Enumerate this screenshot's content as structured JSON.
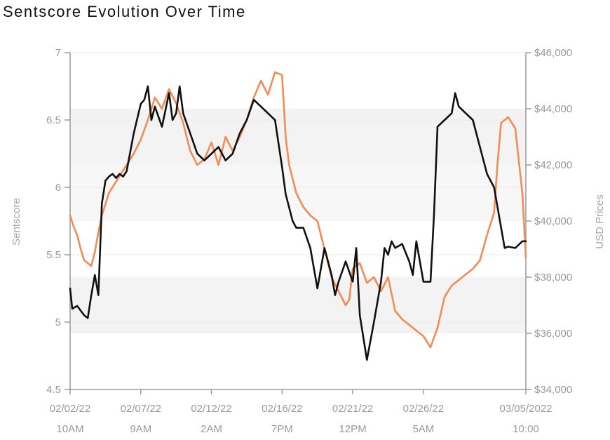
{
  "title": "Sentscore Evolution Over Time",
  "chart_data": {
    "type": "line",
    "title": "Sentscore Evolution Over Time",
    "ylabel_left": "Sentscore",
    "ylabel_right": "USD Prices",
    "ylim_left": [
      4.5,
      7
    ],
    "ylim_right": [
      34000,
      46000
    ],
    "yticks_left": [
      "4.5",
      "5",
      "5.5",
      "6",
      "6.5",
      "7"
    ],
    "yticks_right": [
      "$34,000",
      "$36,000",
      "$38,000",
      "$40,000",
      "$42,000",
      "$44,000",
      "$46,000"
    ],
    "xlim": [
      0,
      6.45
    ],
    "xticks": [
      {
        "pos": 0,
        "line1": "02/02/22",
        "line2": "10AM"
      },
      {
        "pos": 1,
        "line1": "02/07/22",
        "line2": "9AM"
      },
      {
        "pos": 2,
        "line1": "02/12/22",
        "line2": "2AM"
      },
      {
        "pos": 3,
        "line1": "02/16/22",
        "line2": "7PM"
      },
      {
        "pos": 4,
        "line1": "02/21/22",
        "line2": "12PM"
      },
      {
        "pos": 5,
        "line1": "02/26/22",
        "line2": "5AM"
      },
      {
        "pos": 6.45,
        "line1": "03/05/2022",
        "line2": "10:00"
      }
    ],
    "grid": true,
    "legend": "none",
    "colors": {
      "sentscore": "#111111",
      "price": "#f08c55"
    },
    "series": [
      {
        "key": "sentscore",
        "axis": "left",
        "x": [
          0,
          0.03,
          0.1,
          0.2,
          0.25,
          0.3,
          0.35,
          0.4,
          0.45,
          0.5,
          0.55,
          0.6,
          0.65,
          0.7,
          0.75,
          0.8,
          0.9,
          1.0,
          1.05,
          1.1,
          1.15,
          1.2,
          1.3,
          1.4,
          1.45,
          1.5,
          1.55,
          1.6,
          1.7,
          1.8,
          1.9,
          2.0,
          2.1,
          2.2,
          2.3,
          2.4,
          2.5,
          2.6,
          2.7,
          2.8,
          2.9,
          3.0,
          3.05,
          3.1,
          3.15,
          3.2,
          3.3,
          3.4,
          3.5,
          3.6,
          3.7,
          3.75,
          3.8,
          3.9,
          4.0,
          4.05,
          4.1,
          4.2,
          4.3,
          4.4,
          4.45,
          4.5,
          4.55,
          4.6,
          4.7,
          4.8,
          4.85,
          4.9,
          5.0,
          5.1,
          5.15,
          5.2,
          5.3,
          5.4,
          5.45,
          5.5,
          5.6,
          5.7,
          5.8,
          5.9,
          6.0,
          6.05,
          6.1,
          6.15,
          6.2,
          6.3,
          6.4,
          6.45
        ],
        "values": [
          5.25,
          5.1,
          5.12,
          5.05,
          5.03,
          5.2,
          5.35,
          5.2,
          5.88,
          6.05,
          6.08,
          6.1,
          6.07,
          6.1,
          6.08,
          6.12,
          6.4,
          6.62,
          6.65,
          6.75,
          6.5,
          6.6,
          6.45,
          6.7,
          6.5,
          6.55,
          6.75,
          6.55,
          6.4,
          6.25,
          6.2,
          6.25,
          6.3,
          6.2,
          6.25,
          6.4,
          6.5,
          6.65,
          6.6,
          6.55,
          6.5,
          6.15,
          5.95,
          5.85,
          5.75,
          5.7,
          5.7,
          5.55,
          5.25,
          5.55,
          5.35,
          5.2,
          5.3,
          5.45,
          5.3,
          5.55,
          5.05,
          4.72,
          5.0,
          5.3,
          5.55,
          5.5,
          5.6,
          5.55,
          5.58,
          5.45,
          5.35,
          5.6,
          5.3,
          5.3,
          5.8,
          6.45,
          6.5,
          6.55,
          6.7,
          6.6,
          6.55,
          6.5,
          6.3,
          6.1,
          6.0,
          5.85,
          5.7,
          5.55,
          5.56,
          5.55,
          5.6,
          5.6
        ]
      },
      {
        "key": "price",
        "axis": "right",
        "x": [
          0,
          0.05,
          0.1,
          0.15,
          0.2,
          0.25,
          0.3,
          0.35,
          0.4,
          0.45,
          0.55,
          0.7,
          0.8,
          0.9,
          1.0,
          1.1,
          1.2,
          1.3,
          1.4,
          1.5,
          1.6,
          1.7,
          1.8,
          1.9,
          2.0,
          2.1,
          2.2,
          2.3,
          2.4,
          2.5,
          2.6,
          2.7,
          2.8,
          2.9,
          3.0,
          3.05,
          3.1,
          3.2,
          3.3,
          3.4,
          3.5,
          3.6,
          3.7,
          3.8,
          3.9,
          3.95,
          4.0,
          4.1,
          4.2,
          4.3,
          4.4,
          4.5,
          4.6,
          4.7,
          4.8,
          4.9,
          5.0,
          5.1,
          5.2,
          5.3,
          5.4,
          5.5,
          5.6,
          5.7,
          5.8,
          5.9,
          6.0,
          6.05,
          6.1,
          6.15,
          6.2,
          6.3,
          6.4,
          6.45
        ],
        "values": [
          40.2,
          39.8,
          39.5,
          39.0,
          38.6,
          38.5,
          38.4,
          38.9,
          39.6,
          40.2,
          41.0,
          41.6,
          42.0,
          42.4,
          42.9,
          43.6,
          44.4,
          44.0,
          44.7,
          44.2,
          43.5,
          42.5,
          42.0,
          42.2,
          42.8,
          42.0,
          43.0,
          42.5,
          43.0,
          43.6,
          44.4,
          45.0,
          44.5,
          45.3,
          45.2,
          43.0,
          42.0,
          41.0,
          40.5,
          40.2,
          40.0,
          39.0,
          38.0,
          37.5,
          37.0,
          37.2,
          38.3,
          38.5,
          37.8,
          38.0,
          37.5,
          38.0,
          36.8,
          36.5,
          36.3,
          36.1,
          35.9,
          35.5,
          36.2,
          37.3,
          37.7,
          37.9,
          38.1,
          38.3,
          38.6,
          39.5,
          40.3,
          42.1,
          43.5,
          43.6,
          43.7,
          43.3,
          41.0,
          38.7
        ]
      }
    ]
  }
}
